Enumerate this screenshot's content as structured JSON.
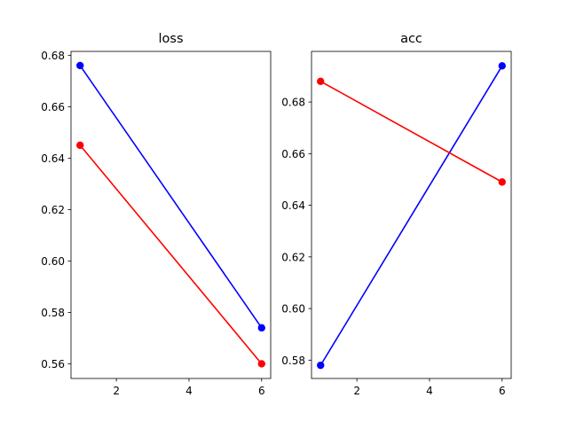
{
  "chart_data": [
    {
      "type": "line",
      "title": "loss",
      "xlabel": "",
      "ylabel": "",
      "xlim": [
        0.75,
        6.25
      ],
      "ylim": [
        0.5543,
        0.6815
      ],
      "xticks": [
        2,
        4,
        6
      ],
      "xtick_labels": [
        "2",
        "4",
        "6"
      ],
      "yticks": [
        0.56,
        0.58,
        0.6,
        0.62,
        0.64,
        0.66,
        0.68
      ],
      "ytick_labels": [
        "0.56",
        "0.58",
        "0.60",
        "0.62",
        "0.64",
        "0.66",
        "0.68"
      ],
      "grid": false,
      "series": [
        {
          "color": "#0000ff",
          "x": [
            1,
            6
          ],
          "y": [
            0.676,
            0.574
          ]
        },
        {
          "color": "#ff0000",
          "x": [
            1,
            6
          ],
          "y": [
            0.645,
            0.56
          ]
        }
      ]
    },
    {
      "type": "line",
      "title": "acc",
      "xlabel": "",
      "ylabel": "",
      "xlim": [
        0.75,
        6.25
      ],
      "ylim": [
        0.5729,
        0.6996
      ],
      "xticks": [
        2,
        4,
        6
      ],
      "xtick_labels": [
        "2",
        "4",
        "6"
      ],
      "yticks": [
        0.58,
        0.6,
        0.62,
        0.64,
        0.66,
        0.68
      ],
      "ytick_labels": [
        "0.58",
        "0.60",
        "0.62",
        "0.64",
        "0.66",
        "0.68"
      ],
      "grid": false,
      "series": [
        {
          "color": "#0000ff",
          "x": [
            1,
            6
          ],
          "y": [
            0.578,
            0.694
          ]
        },
        {
          "color": "#ff0000",
          "x": [
            1,
            6
          ],
          "y": [
            0.688,
            0.649
          ]
        }
      ]
    }
  ]
}
